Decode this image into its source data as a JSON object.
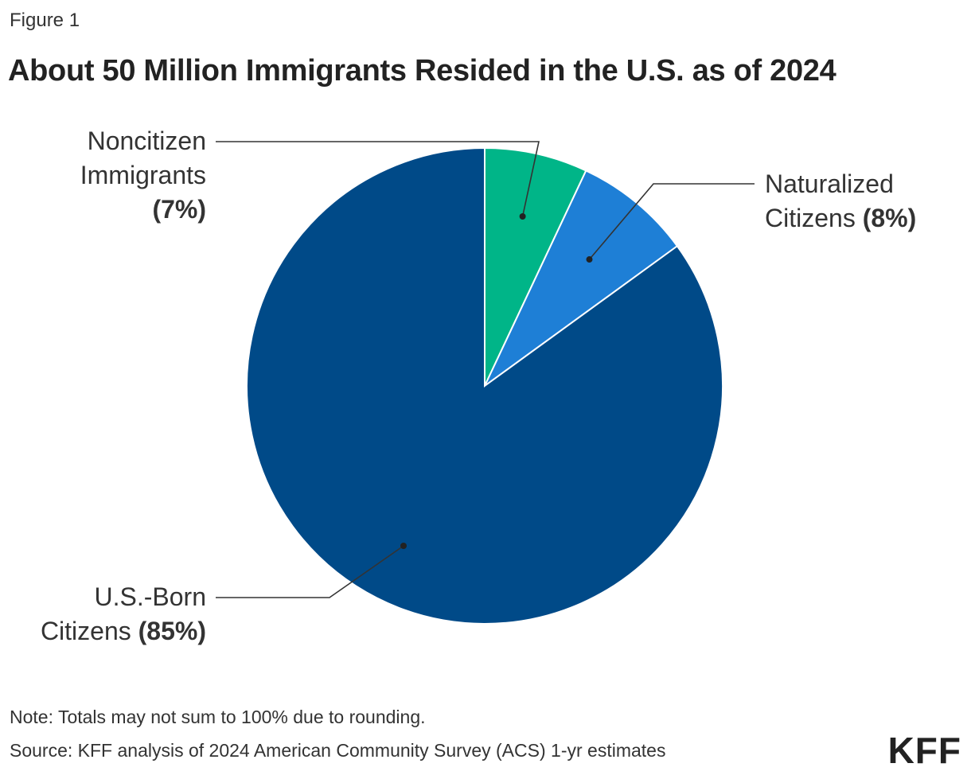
{
  "figure_label": "Figure 1",
  "title": "About 50 Million Immigrants Resided in the U.S. as of 2024",
  "chart_data": {
    "type": "pie",
    "slices": [
      {
        "label_line1": "Noncitizen",
        "label_line2": "Immigrants",
        "pct_label": "(7%)",
        "value": 7,
        "color": "#00B588"
      },
      {
        "label_line1": "Naturalized",
        "label_line2": "Citizens",
        "pct_label": "(8%)",
        "value": 8,
        "color": "#1E7FD6"
      },
      {
        "label_line1": "U.S.-Born",
        "label_line2": "Citizens",
        "pct_label": "(85%)",
        "value": 85,
        "color": "#004A88"
      }
    ]
  },
  "note": "Note: Totals may not sum to 100% due to rounding.",
  "source": "Source: KFF analysis of 2024 American Community Survey (ACS) 1-yr estimates",
  "logo": "KFF"
}
